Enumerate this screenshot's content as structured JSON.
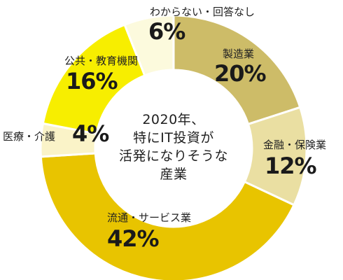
{
  "chart_data": {
    "type": "pie",
    "style": "donut",
    "center_text": [
      "2020年、",
      "特にIT投資が",
      "活発になりそうな",
      "産業"
    ],
    "slices": [
      {
        "name": "製造業",
        "value": 20,
        "label": "20%",
        "color": "#cdbc68"
      },
      {
        "name": "金融・保険業",
        "value": 12,
        "label": "12%",
        "color": "#eadfa2"
      },
      {
        "name": "流通・サービス業",
        "value": 42,
        "label": "42%",
        "color": "#e8c400"
      },
      {
        "name": "医療・介護",
        "value": 4,
        "label": "4%",
        "color": "#faf3c8"
      },
      {
        "name": "公共・教育機関",
        "value": 16,
        "label": "16%",
        "color": "#f7ee00"
      },
      {
        "name": "わからない・回答なし",
        "value": 6,
        "label": "6%",
        "color": "#fcfadd"
      }
    ]
  }
}
